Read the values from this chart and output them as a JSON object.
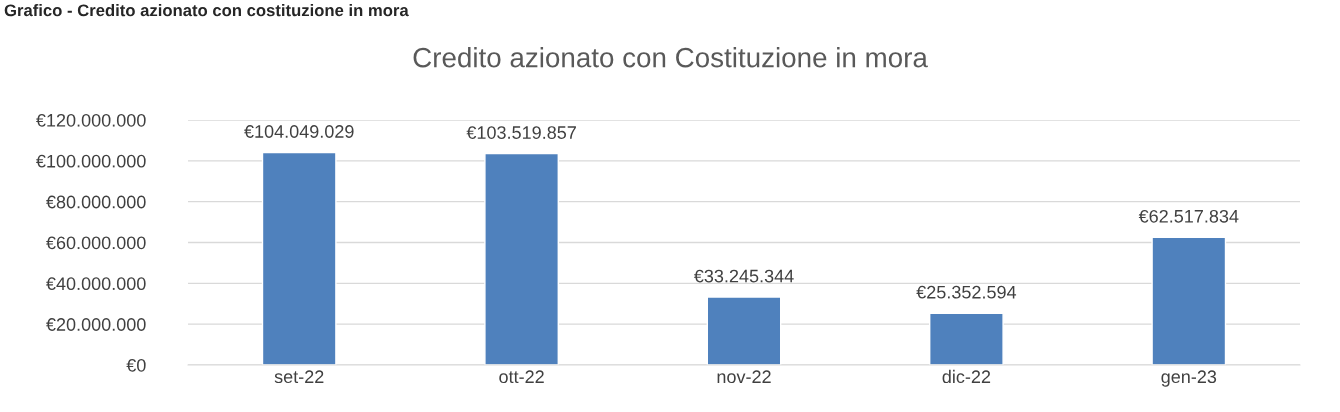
{
  "chart_data": {
    "type": "bar",
    "title": "Credito azionato con Costituzione in mora",
    "annotations": [
      "Grafico - Credito azionato con costituzione in mora"
    ],
    "categories": [
      "set-22",
      "ott-22",
      "nov-22",
      "dic-22",
      "gen-23"
    ],
    "values": [
      104049029,
      103519857,
      33245344,
      25352594,
      62517834
    ],
    "value_labels": [
      "€104.049.029",
      "€103.519.857",
      "€33.245.344",
      "€25.352.594",
      "€62.517.834"
    ],
    "color": "#4f81bd",
    "ylim": [
      0,
      120000000
    ],
    "yticks": [
      {
        "value": 0,
        "label": "€0"
      },
      {
        "value": 20000000,
        "label": "€20.000.000"
      },
      {
        "value": 40000000,
        "label": "€40.000.000"
      },
      {
        "value": 60000000,
        "label": "€60.000.000"
      },
      {
        "value": 80000000,
        "label": "€80.000.000"
      },
      {
        "value": 100000000,
        "label": "€100.000.000"
      },
      {
        "value": 120000000,
        "label": "€120.000.000"
      }
    ],
    "grid": "y"
  }
}
